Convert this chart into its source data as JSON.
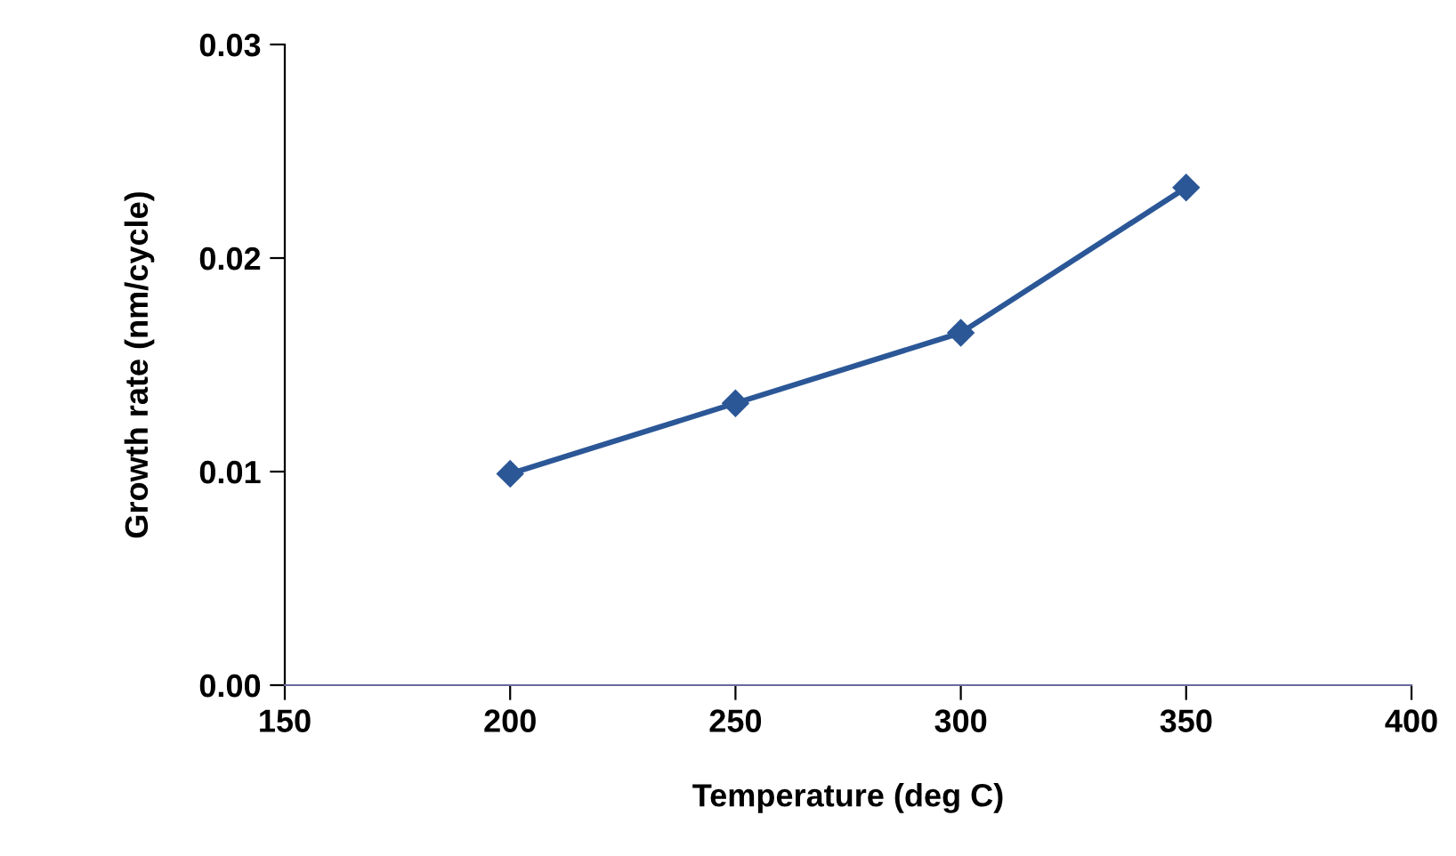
{
  "chart_data": {
    "type": "line",
    "xlabel": "Temperature (deg C)",
    "ylabel": "Growth rate (nm/cycle)",
    "x": [
      200,
      250,
      300,
      350
    ],
    "series": [
      {
        "color": "#2b5797",
        "values": [
          0.0099,
          0.0132,
          0.0165,
          0.0233
        ]
      }
    ],
    "xlim": [
      150,
      400
    ],
    "xticks": [
      150,
      200,
      250,
      300,
      350,
      400
    ],
    "ylim": [
      0,
      0.03
    ],
    "yticks": [
      {
        "value": 0,
        "label": "0.00"
      },
      {
        "value": 0.01,
        "label": "0.01"
      },
      {
        "value": 0.02,
        "label": "0.02"
      },
      {
        "value": 0.03,
        "label": "0.03"
      }
    ],
    "grid": false,
    "legend": false,
    "marker": "diamond",
    "line_style": "solid"
  }
}
